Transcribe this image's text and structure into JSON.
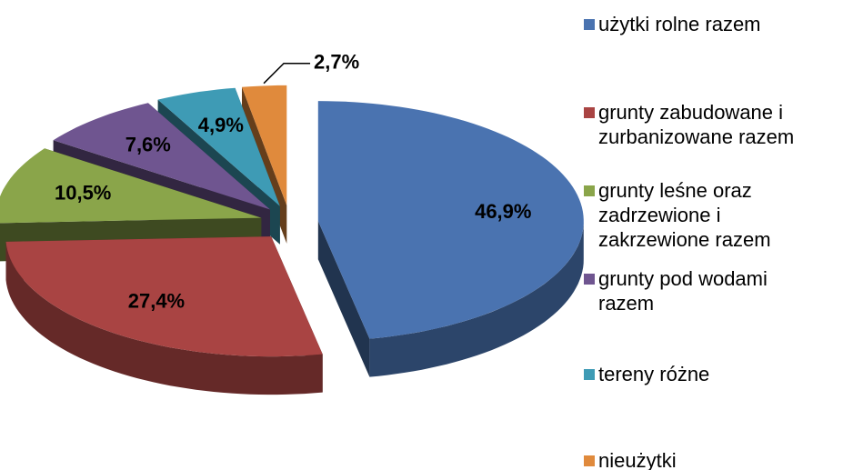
{
  "chart_data": {
    "type": "pie3d",
    "categories": [
      "użytki rolne razem",
      "grunty zabudowane i zurbanizowane razem",
      "grunty leśne oraz zadrzewione i zakrzewione razem",
      "grunty pod wodami razem",
      "tereny różne",
      "nieużytki"
    ],
    "values": [
      46.9,
      27.4,
      10.5,
      7.6,
      4.9,
      2.7
    ],
    "value_labels": [
      "46,9%",
      "27,4%",
      "10,5%",
      "7,6%",
      "4,9%",
      "2,7%"
    ],
    "colors": [
      "#4a73b0",
      "#a94443",
      "#8aa54a",
      "#6f5590",
      "#3e9bb5",
      "#e08a3c"
    ]
  }
}
